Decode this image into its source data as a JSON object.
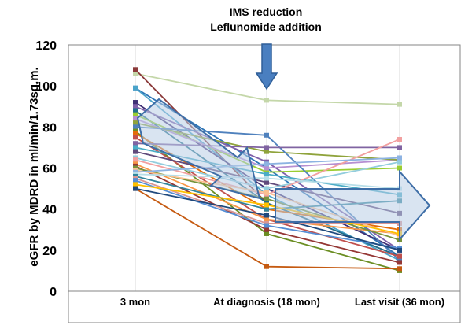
{
  "chart_data": {
    "type": "line",
    "title_lines": [
      "IMS reduction",
      "Leflunomide addition"
    ],
    "ylabel": "eGFR by MDRD in ml/min/1.73sq.m.",
    "xlabel": "",
    "categories": [
      "3 mon",
      "At diagnosis (18 mon)",
      "Last visit (36 mon)"
    ],
    "ylim": [
      0,
      120
    ],
    "yticks": [
      0,
      20,
      40,
      60,
      80,
      100,
      120
    ],
    "grid": {
      "x": true,
      "y": false
    },
    "legend": "none",
    "colors": {
      "arrow_fill": "#b9cde6",
      "arrow_stroke": "#3e6ea7",
      "down_arrow": "#4a7fc0"
    },
    "series": [
      {
        "values": [
          106,
          93,
          91
        ],
        "color": "#c4d7a9"
      },
      {
        "values": [
          108,
          43,
          17
        ],
        "color": "#8b3a3a"
      },
      {
        "values": [
          99,
          60,
          17
        ],
        "color": "#2e75b6"
      },
      {
        "values": [
          99,
          47,
          15
        ],
        "color": "#4aa3c9"
      },
      {
        "values": [
          92,
          50,
          20
        ],
        "color": "#403075"
      },
      {
        "values": [
          90,
          63,
          20
        ],
        "color": "#7f5fa8"
      },
      {
        "values": [
          88,
          43,
          17
        ],
        "color": "#1f6f8b"
      },
      {
        "values": [
          86,
          58,
          60
        ],
        "color": "#9acd32"
      },
      {
        "values": [
          84,
          60,
          64
        ],
        "color": "#b68fd1"
      },
      {
        "values": [
          82,
          68,
          64
        ],
        "color": "#8fa33b"
      },
      {
        "values": [
          80,
          76,
          15
        ],
        "color": "#4f81bd"
      },
      {
        "values": [
          78,
          28,
          10
        ],
        "color": "#6b8e23"
      },
      {
        "values": [
          77,
          40,
          30
        ],
        "color": "#e46c0a"
      },
      {
        "values": [
          75,
          35,
          17
        ],
        "color": "#c0504d"
      },
      {
        "values": [
          72,
          70,
          70
        ],
        "color": "#8064a2"
      },
      {
        "values": [
          70,
          57,
          47
        ],
        "color": "#4bacc6"
      },
      {
        "values": [
          68,
          53,
          38
        ],
        "color": "#604a7b"
      },
      {
        "values": [
          65,
          50,
          63
        ],
        "color": "#93cddd"
      },
      {
        "values": [
          64,
          47,
          74
        ],
        "color": "#f2a0a0"
      },
      {
        "values": [
          62,
          35,
          28
        ],
        "color": "#f79646"
      },
      {
        "values": [
          61,
          30,
          14
        ],
        "color": "#953735"
      },
      {
        "values": [
          60,
          45,
          25
        ],
        "color": "#77933c"
      },
      {
        "values": [
          59,
          48,
          27
        ],
        "color": "#fac090"
      },
      {
        "values": [
          58,
          62,
          65
        ],
        "color": "#8db3e2"
      },
      {
        "values": [
          57,
          55,
          50
        ],
        "color": "#b7dee8"
      },
      {
        "values": [
          56,
          40,
          44
        ],
        "color": "#31859c"
      },
      {
        "values": [
          55,
          33,
          33
        ],
        "color": "#d99694"
      },
      {
        "values": [
          54,
          32,
          21
        ],
        "color": "#558ed5"
      },
      {
        "values": [
          52,
          42,
          28
        ],
        "color": "#ffc000"
      },
      {
        "values": [
          50,
          12,
          11
        ],
        "color": "#c55a11"
      },
      {
        "values": [
          50,
          37,
          20
        ],
        "color": "#1f497d"
      }
    ]
  }
}
